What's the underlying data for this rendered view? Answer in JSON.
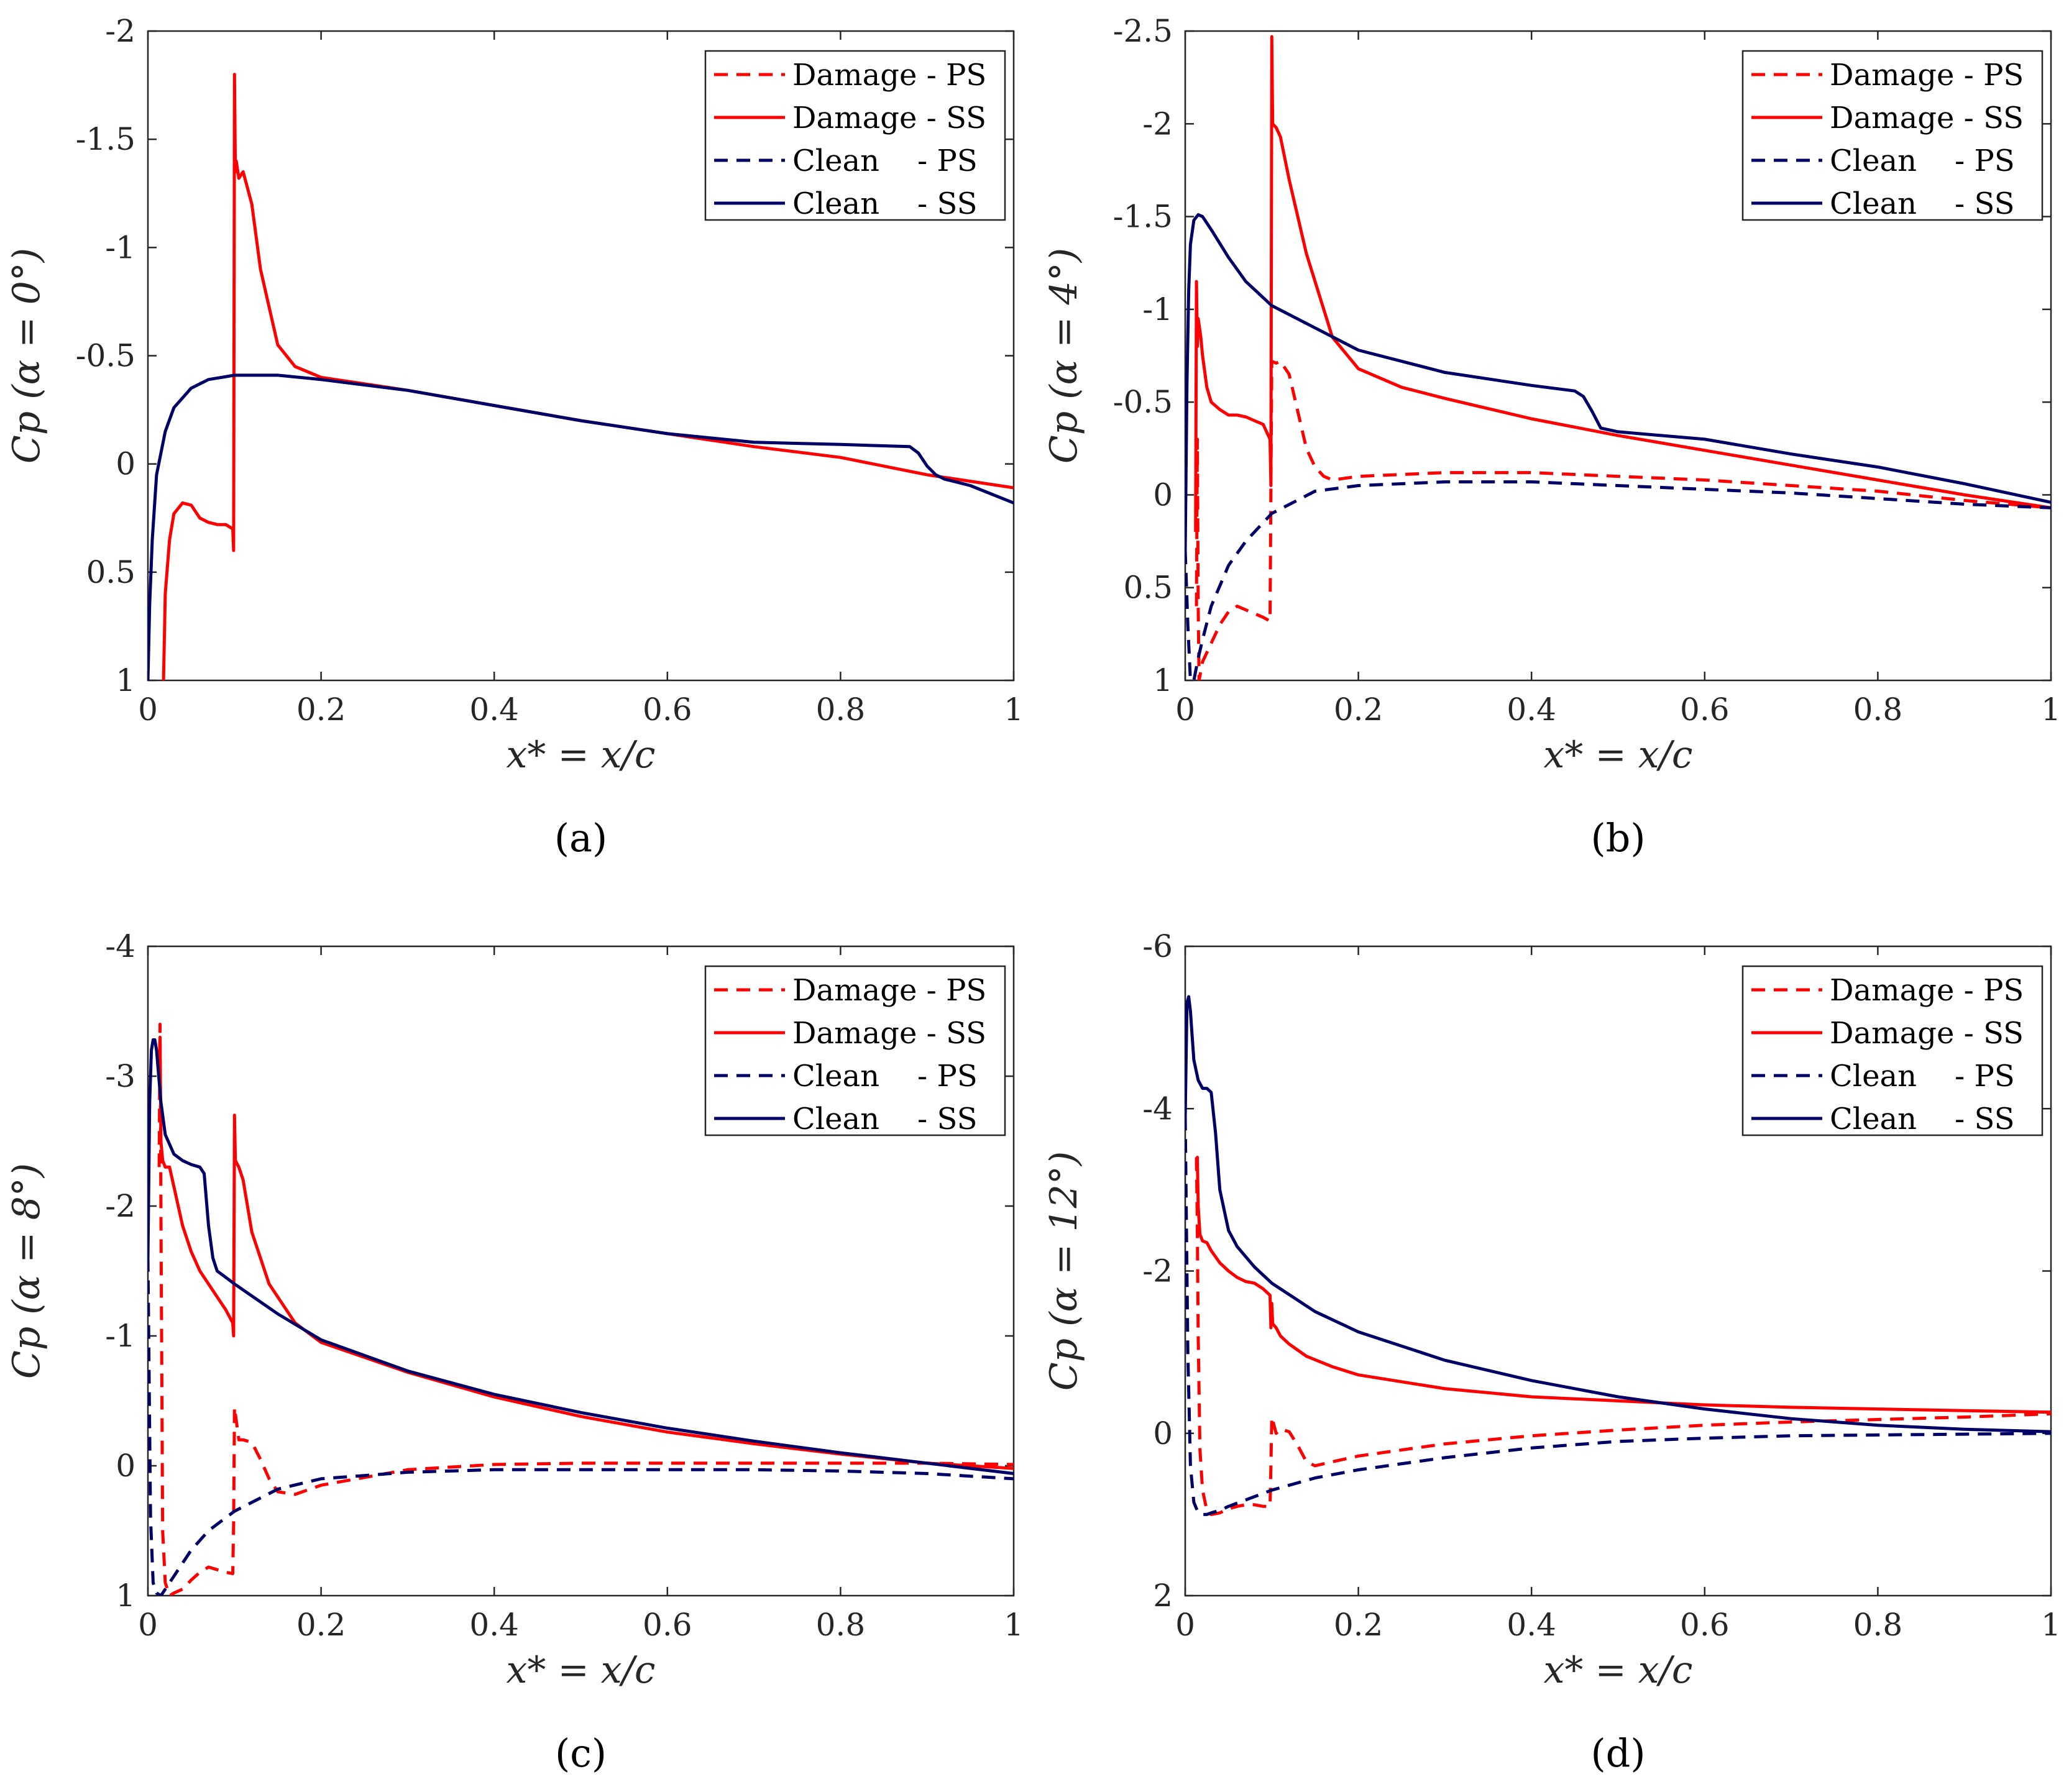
{
  "figure": {
    "x_label": "x* = x/c",
    "legend": [
      {
        "label": "Damage - PS",
        "color": "#ff0000",
        "dash": true
      },
      {
        "label": "Damage - SS",
        "color": "#ff0000",
        "dash": false
      },
      {
        "label": "Clean    - PS",
        "color": "#000066",
        "dash": true
      },
      {
        "label": "Clean    - SS",
        "color": "#000066",
        "dash": false
      }
    ]
  },
  "chart_data": [
    {
      "type": "line",
      "panel_label": "(a)",
      "ylabel": "Cp (α = 0°)",
      "xlabel": "x* = x/c",
      "xlim": [
        0,
        1
      ],
      "ylim": [
        -2,
        1
      ],
      "y_reversed": true,
      "xticks": [
        "0",
        "0.2",
        "0.4",
        "0.6",
        "0.8",
        "1"
      ],
      "yticks": [
        "-2",
        "-1.5",
        "-1",
        "-0.5",
        "0",
        "0.5",
        "1"
      ],
      "series": [
        {
          "name": "Damage - SS",
          "color": "#ff0000",
          "dash": false,
          "x": [
            0.018,
            0.02,
            0.025,
            0.03,
            0.04,
            0.05,
            0.06,
            0.07,
            0.08,
            0.09,
            0.098,
            0.099,
            0.1,
            0.101,
            0.102,
            0.105,
            0.11,
            0.12,
            0.13,
            0.15,
            0.17,
            0.2,
            0.3,
            0.4,
            0.5,
            0.6,
            0.7,
            0.8,
            0.9,
            1.0
          ],
          "y": [
            1.0,
            0.6,
            0.35,
            0.23,
            0.18,
            0.19,
            0.25,
            0.27,
            0.28,
            0.28,
            0.3,
            0.4,
            -1.8,
            -1.35,
            -1.4,
            -1.32,
            -1.35,
            -1.2,
            -0.9,
            -0.55,
            -0.45,
            -0.4,
            -0.34,
            -0.27,
            -0.2,
            -0.14,
            -0.08,
            -0.03,
            0.05,
            0.11
          ]
        },
        {
          "name": "Clean - SS",
          "color": "#000066",
          "dash": false,
          "x": [
            0.0,
            0.002,
            0.005,
            0.01,
            0.02,
            0.03,
            0.05,
            0.07,
            0.1,
            0.12,
            0.15,
            0.2,
            0.3,
            0.4,
            0.5,
            0.6,
            0.7,
            0.8,
            0.88,
            0.89,
            0.9,
            0.91,
            0.92,
            0.95,
            1.0
          ],
          "y": [
            1.0,
            0.65,
            0.35,
            0.05,
            -0.15,
            -0.26,
            -0.35,
            -0.39,
            -0.41,
            -0.41,
            -0.41,
            -0.39,
            -0.34,
            -0.27,
            -0.2,
            -0.14,
            -0.1,
            -0.09,
            -0.08,
            -0.05,
            0.01,
            0.05,
            0.07,
            0.1,
            0.18
          ]
        }
      ]
    },
    {
      "type": "line",
      "panel_label": "(b)",
      "ylabel": "Cp (α = 4°)",
      "xlabel": "x* = x/c",
      "xlim": [
        0,
        1
      ],
      "ylim": [
        -2.5,
        1
      ],
      "y_reversed": true,
      "xticks": [
        "0",
        "0.2",
        "0.4",
        "0.6",
        "0.8",
        "1"
      ],
      "yticks": [
        "-2.5",
        "-2",
        "-1.5",
        "-1",
        "-0.5",
        "0",
        "0.5",
        "1"
      ],
      "series": [
        {
          "name": "Damage - PS",
          "color": "#ff0000",
          "dash": true,
          "x": [
            0.013,
            0.014,
            0.015,
            0.016,
            0.018,
            0.02,
            0.03,
            0.04,
            0.05,
            0.06,
            0.07,
            0.08,
            0.09,
            0.098,
            0.099,
            0.1,
            0.105,
            0.11,
            0.12,
            0.13,
            0.14,
            0.15,
            0.16,
            0.17,
            0.2,
            0.3,
            0.4,
            0.5,
            0.6,
            0.7,
            0.8,
            0.9,
            1.0
          ],
          "y": [
            0.6,
            -0.3,
            0.6,
            1.0,
            0.95,
            0.9,
            0.8,
            0.7,
            0.63,
            0.6,
            0.62,
            0.64,
            0.66,
            0.68,
            -0.05,
            -0.72,
            -0.71,
            -0.72,
            -0.65,
            -0.45,
            -0.25,
            -0.15,
            -0.1,
            -0.08,
            -0.1,
            -0.12,
            -0.12,
            -0.1,
            -0.08,
            -0.05,
            -0.02,
            0.03,
            0.07
          ]
        },
        {
          "name": "Damage - SS",
          "color": "#ff0000",
          "dash": false,
          "x": [
            0.012,
            0.013,
            0.014,
            0.015,
            0.018,
            0.02,
            0.025,
            0.03,
            0.04,
            0.05,
            0.06,
            0.07,
            0.08,
            0.09,
            0.098,
            0.099,
            0.1,
            0.101,
            0.105,
            0.11,
            0.12,
            0.14,
            0.17,
            0.2,
            0.25,
            0.3,
            0.4,
            0.5,
            0.6,
            0.7,
            0.8,
            0.9,
            1.0
          ],
          "y": [
            0.2,
            -1.15,
            -0.8,
            -0.95,
            -0.85,
            -0.75,
            -0.58,
            -0.5,
            -0.46,
            -0.43,
            -0.43,
            -0.42,
            -0.4,
            -0.38,
            -0.3,
            -0.05,
            -2.47,
            -2.0,
            -1.98,
            -1.93,
            -1.7,
            -1.3,
            -0.85,
            -0.68,
            -0.58,
            -0.52,
            -0.41,
            -0.32,
            -0.24,
            -0.16,
            -0.08,
            0.0,
            0.07
          ]
        },
        {
          "name": "Clean - PS",
          "color": "#000066",
          "dash": true,
          "x": [
            0.0,
            0.003,
            0.006,
            0.01,
            0.015,
            0.02,
            0.03,
            0.05,
            0.07,
            0.1,
            0.15,
            0.2,
            0.3,
            0.4,
            0.5,
            0.6,
            0.7,
            0.8,
            0.9,
            1.0
          ],
          "y": [
            0.3,
            0.7,
            1.0,
            1.0,
            0.88,
            0.78,
            0.6,
            0.38,
            0.25,
            0.1,
            -0.02,
            -0.05,
            -0.07,
            -0.07,
            -0.05,
            -0.03,
            -0.01,
            0.02,
            0.05,
            0.07
          ]
        },
        {
          "name": "Clean - SS",
          "color": "#000066",
          "dash": false,
          "x": [
            0.0,
            0.002,
            0.004,
            0.006,
            0.01,
            0.015,
            0.02,
            0.03,
            0.05,
            0.07,
            0.1,
            0.15,
            0.2,
            0.3,
            0.4,
            0.45,
            0.46,
            0.47,
            0.48,
            0.5,
            0.6,
            0.7,
            0.8,
            0.9,
            1.0
          ],
          "y": [
            0.3,
            -0.6,
            -1.1,
            -1.35,
            -1.48,
            -1.51,
            -1.5,
            -1.43,
            -1.28,
            -1.15,
            -1.02,
            -0.9,
            -0.78,
            -0.66,
            -0.59,
            -0.56,
            -0.53,
            -0.45,
            -0.36,
            -0.34,
            -0.3,
            -0.22,
            -0.15,
            -0.06,
            0.04
          ]
        }
      ]
    },
    {
      "type": "line",
      "panel_label": "(c)",
      "ylabel": "Cp (α = 8°)",
      "xlabel": "x* = x/c",
      "xlim": [
        0,
        1
      ],
      "ylim": [
        -4,
        1
      ],
      "y_reversed": true,
      "xticks": [
        "0",
        "0.2",
        "0.4",
        "0.6",
        "0.8",
        "1"
      ],
      "yticks": [
        "-4",
        "-3",
        "-2",
        "-1",
        "0",
        "1"
      ],
      "series": [
        {
          "name": "Damage - PS",
          "color": "#ff0000",
          "dash": true,
          "x": [
            0.013,
            0.014,
            0.015,
            0.017,
            0.02,
            0.025,
            0.03,
            0.04,
            0.05,
            0.06,
            0.07,
            0.08,
            0.09,
            0.098,
            0.099,
            0.1,
            0.105,
            0.11,
            0.12,
            0.13,
            0.14,
            0.15,
            0.17,
            0.2,
            0.3,
            0.4,
            0.5,
            0.6,
            0.7,
            0.8,
            0.9,
            1.0
          ],
          "y": [
            -2.3,
            -3.4,
            -2.0,
            0.5,
            0.9,
            1.0,
            0.98,
            0.95,
            0.88,
            0.82,
            0.78,
            0.8,
            0.82,
            0.83,
            0.45,
            -0.45,
            -0.2,
            -0.2,
            -0.18,
            -0.05,
            0.1,
            0.2,
            0.22,
            0.15,
            0.03,
            -0.01,
            -0.02,
            -0.02,
            -0.02,
            -0.02,
            -0.02,
            -0.01
          ]
        },
        {
          "name": "Damage - SS",
          "color": "#ff0000",
          "dash": false,
          "x": [
            0.013,
            0.014,
            0.015,
            0.017,
            0.02,
            0.025,
            0.03,
            0.04,
            0.05,
            0.06,
            0.07,
            0.08,
            0.09,
            0.098,
            0.099,
            0.1,
            0.101,
            0.105,
            0.11,
            0.12,
            0.14,
            0.17,
            0.2,
            0.3,
            0.4,
            0.5,
            0.6,
            0.7,
            0.8,
            0.9,
            1.0
          ],
          "y": [
            -3.1,
            -3.3,
            -2.5,
            -2.35,
            -2.3,
            -2.3,
            -2.15,
            -1.85,
            -1.65,
            -1.5,
            -1.4,
            -1.3,
            -1.2,
            -1.1,
            -1.0,
            -2.7,
            -2.35,
            -2.3,
            -2.2,
            -1.8,
            -1.4,
            -1.1,
            -0.95,
            -0.72,
            -0.53,
            -0.38,
            -0.26,
            -0.17,
            -0.09,
            -0.02,
            0.02
          ]
        },
        {
          "name": "Clean - PS",
          "color": "#000066",
          "dash": true,
          "x": [
            0.0,
            0.003,
            0.006,
            0.01,
            0.015,
            0.02,
            0.03,
            0.05,
            0.07,
            0.1,
            0.15,
            0.2,
            0.3,
            0.4,
            0.5,
            0.6,
            0.7,
            0.8,
            0.9,
            1.0
          ],
          "y": [
            -1.6,
            0.4,
            0.9,
            0.98,
            1.0,
            0.95,
            0.85,
            0.65,
            0.5,
            0.35,
            0.18,
            0.1,
            0.05,
            0.03,
            0.03,
            0.03,
            0.03,
            0.04,
            0.06,
            0.1
          ]
        },
        {
          "name": "Clean - SS",
          "color": "#000066",
          "dash": false,
          "x": [
            0.0,
            0.002,
            0.004,
            0.006,
            0.008,
            0.01,
            0.015,
            0.02,
            0.03,
            0.04,
            0.05,
            0.06,
            0.065,
            0.07,
            0.075,
            0.08,
            0.09,
            0.1,
            0.15,
            0.2,
            0.3,
            0.4,
            0.5,
            0.6,
            0.7,
            0.8,
            0.9,
            1.0
          ],
          "y": [
            -1.6,
            -2.8,
            -3.2,
            -3.28,
            -3.28,
            -3.2,
            -2.8,
            -2.55,
            -2.4,
            -2.35,
            -2.32,
            -2.3,
            -2.25,
            -1.85,
            -1.6,
            -1.5,
            -1.45,
            -1.4,
            -1.17,
            -0.97,
            -0.73,
            -0.55,
            -0.41,
            -0.29,
            -0.19,
            -0.1,
            -0.02,
            0.06
          ]
        }
      ]
    },
    {
      "type": "line",
      "panel_label": "(d)",
      "ylabel": "Cp (α = 12°)",
      "xlabel": "x* = x/c",
      "xlim": [
        0,
        1
      ],
      "ylim": [
        -6,
        2
      ],
      "y_reversed": true,
      "xticks": [
        "0",
        "0.2",
        "0.4",
        "0.6",
        "0.8",
        "1"
      ],
      "yticks": [
        "-6",
        "-4",
        "-2",
        "0",
        "2"
      ],
      "series": [
        {
          "name": "Damage - PS",
          "color": "#ff0000",
          "dash": true,
          "x": [
            0.013,
            0.014,
            0.015,
            0.017,
            0.02,
            0.025,
            0.03,
            0.04,
            0.05,
            0.06,
            0.07,
            0.08,
            0.09,
            0.098,
            0.099,
            0.1,
            0.105,
            0.11,
            0.12,
            0.13,
            0.14,
            0.15,
            0.17,
            0.2,
            0.3,
            0.4,
            0.5,
            0.6,
            0.7,
            0.8,
            0.9,
            1.0
          ],
          "y": [
            -3.4,
            -2.5,
            -1.2,
            0.2,
            0.7,
            0.95,
            1.0,
            0.98,
            0.93,
            0.9,
            0.88,
            0.88,
            0.9,
            0.9,
            0.4,
            -0.2,
            0.0,
            -0.05,
            -0.02,
            0.15,
            0.35,
            0.4,
            0.35,
            0.28,
            0.13,
            0.03,
            -0.04,
            -0.1,
            -0.14,
            -0.17,
            -0.2,
            -0.24
          ]
        },
        {
          "name": "Damage - SS",
          "color": "#ff0000",
          "dash": false,
          "x": [
            0.013,
            0.014,
            0.015,
            0.017,
            0.02,
            0.025,
            0.03,
            0.04,
            0.05,
            0.06,
            0.07,
            0.08,
            0.09,
            0.098,
            0.099,
            0.1,
            0.101,
            0.105,
            0.11,
            0.12,
            0.14,
            0.17,
            0.2,
            0.3,
            0.4,
            0.5,
            0.6,
            0.7,
            0.8,
            0.9,
            1.0
          ],
          "y": [
            -3.3,
            -3.4,
            -2.8,
            -2.45,
            -2.37,
            -2.35,
            -2.25,
            -2.1,
            -2.0,
            -1.92,
            -1.87,
            -1.85,
            -1.78,
            -1.7,
            -1.3,
            -1.6,
            -1.35,
            -1.3,
            -1.2,
            -1.1,
            -0.95,
            -0.82,
            -0.72,
            -0.55,
            -0.45,
            -0.4,
            -0.35,
            -0.32,
            -0.3,
            -0.28,
            -0.26
          ]
        },
        {
          "name": "Clean - PS",
          "color": "#000066",
          "dash": true,
          "x": [
            0.0,
            0.003,
            0.006,
            0.01,
            0.015,
            0.02,
            0.025,
            0.03,
            0.04,
            0.05,
            0.07,
            0.1,
            0.15,
            0.2,
            0.3,
            0.4,
            0.5,
            0.6,
            0.7,
            0.8,
            0.9,
            1.0
          ],
          "y": [
            -3.9,
            -1.0,
            0.4,
            0.85,
            0.98,
            1.0,
            1.0,
            0.98,
            0.95,
            0.9,
            0.82,
            0.7,
            0.55,
            0.45,
            0.3,
            0.18,
            0.1,
            0.06,
            0.03,
            0.02,
            0.01,
            0.0
          ]
        },
        {
          "name": "Clean - SS",
          "color": "#000066",
          "dash": false,
          "x": [
            0.0,
            0.002,
            0.004,
            0.006,
            0.008,
            0.01,
            0.015,
            0.02,
            0.025,
            0.03,
            0.035,
            0.04,
            0.05,
            0.06,
            0.08,
            0.1,
            0.15,
            0.2,
            0.3,
            0.4,
            0.5,
            0.6,
            0.7,
            0.8,
            0.9,
            1.0
          ],
          "y": [
            -3.9,
            -5.3,
            -5.38,
            -5.2,
            -4.9,
            -4.6,
            -4.35,
            -4.25,
            -4.25,
            -4.2,
            -3.7,
            -3.0,
            -2.5,
            -2.3,
            -2.05,
            -1.85,
            -1.5,
            -1.25,
            -0.9,
            -0.65,
            -0.45,
            -0.3,
            -0.18,
            -0.1,
            -0.05,
            -0.02
          ]
        }
      ]
    }
  ]
}
